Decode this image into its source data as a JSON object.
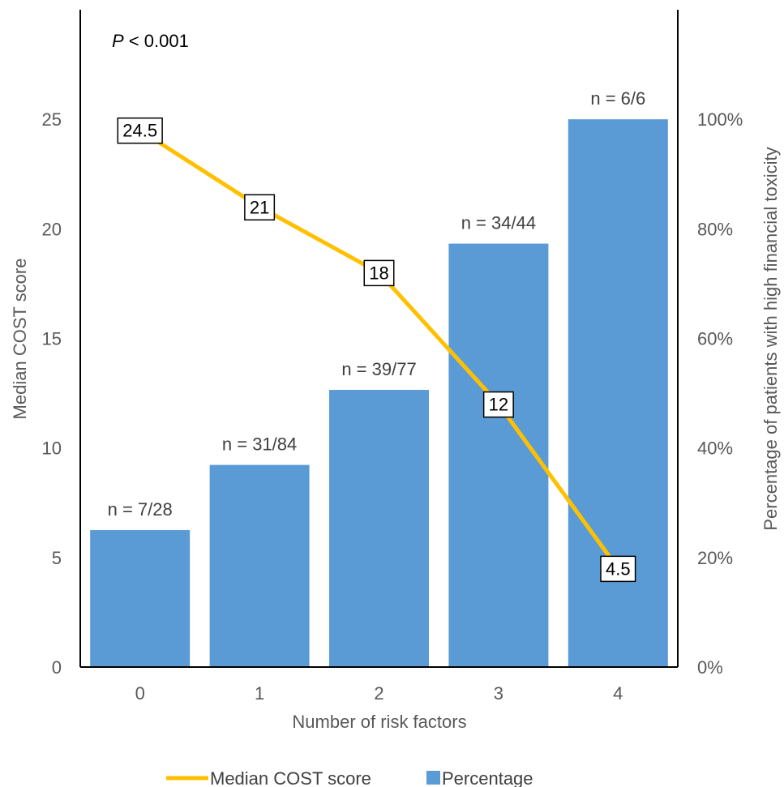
{
  "chart_data": {
    "type": "bar",
    "categories": [
      "0",
      "1",
      "2",
      "3",
      "4"
    ],
    "xlabel": "Number of risk factors",
    "ylabel": "Median COST score",
    "ylabel_right": "Percentage of patients with high financial toxicity",
    "ylim": [
      0,
      30
    ],
    "ylim_right": [
      0,
      1.2
    ],
    "y_ticks": [
      "0",
      "5",
      "10",
      "15",
      "20",
      "25"
    ],
    "y_right_ticks": [
      "0%",
      "20%",
      "40%",
      "60%",
      "80%",
      "100%"
    ],
    "annotation_italic": "P",
    "annotation_rest": " < 0.001",
    "series": [
      {
        "name": "Median COST score",
        "kind": "line",
        "axis": "left",
        "color": "#FFC000",
        "values": [
          24.5,
          21,
          18,
          12,
          4.5
        ],
        "labels": [
          "24.5",
          "21",
          "18",
          "12",
          "4.5"
        ]
      },
      {
        "name": "Percentage",
        "kind": "bar",
        "axis": "right",
        "color": "#5B9BD5",
        "values": [
          0.25,
          0.369,
          0.506,
          0.773,
          1.0
        ],
        "labels": [
          "n = 7/28",
          "n = 31/84",
          "n = 39/77",
          "n = 34/44",
          "n = 6/6"
        ]
      }
    ],
    "legend_position": "bottom",
    "grid": false
  }
}
